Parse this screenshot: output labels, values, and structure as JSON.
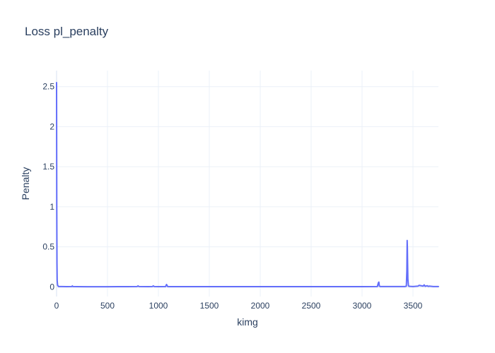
{
  "chart_data": {
    "type": "line",
    "title": "Loss pl_penalty",
    "xlabel": "kimg",
    "ylabel": "Penalty",
    "xlim": [
      0,
      3750
    ],
    "ylim": [
      -0.12,
      2.7
    ],
    "x_ticks": [
      0,
      500,
      1000,
      1500,
      2000,
      2500,
      3000,
      3500
    ],
    "x_tick_labels": [
      "0",
      "500",
      "1000",
      "1500",
      "2000",
      "2500",
      "3000",
      "3500"
    ],
    "y_ticks": [
      0,
      0.5,
      1,
      1.5,
      2,
      2.5
    ],
    "y_tick_labels": [
      "0",
      "0.5",
      "1",
      "1.5",
      "2",
      "2.5"
    ],
    "grid": true,
    "legend": "none",
    "series": [
      {
        "color": "#636efa",
        "x": [
          0,
          2,
          4,
          6,
          10,
          20,
          50,
          100,
          150,
          155,
          160,
          200,
          300,
          400,
          500,
          600,
          700,
          790,
          800,
          810,
          900,
          940,
          950,
          960,
          1000,
          1070,
          1080,
          1085,
          1090,
          1100,
          1200,
          1500,
          2000,
          2500,
          3000,
          3150,
          3160,
          3165,
          3170,
          3180,
          3300,
          3420,
          3435,
          3440,
          3443,
          3445,
          3447,
          3450,
          3455,
          3460,
          3500,
          3550,
          3560,
          3600,
          3610,
          3620,
          3640,
          3650,
          3660,
          3700,
          3750
        ],
        "y": [
          2.55,
          1.0,
          0.3,
          0.08,
          0.02,
          0.005,
          0.004,
          0.003,
          0.005,
          0.012,
          0.004,
          0.003,
          0.002,
          0.002,
          0.002,
          0.003,
          0.003,
          0.004,
          0.012,
          0.004,
          0.003,
          0.005,
          0.012,
          0.004,
          0.003,
          0.004,
          0.03,
          0.02,
          0.005,
          0.003,
          0.003,
          0.003,
          0.003,
          0.003,
          0.003,
          0.004,
          0.05,
          0.06,
          0.01,
          0.004,
          0.004,
          0.004,
          0.01,
          0.2,
          0.58,
          0.5,
          0.32,
          0.1,
          0.02,
          0.008,
          0.005,
          0.01,
          0.02,
          0.01,
          0.025,
          0.008,
          0.015,
          0.006,
          0.01,
          0.004,
          0.004
        ]
      }
    ]
  }
}
